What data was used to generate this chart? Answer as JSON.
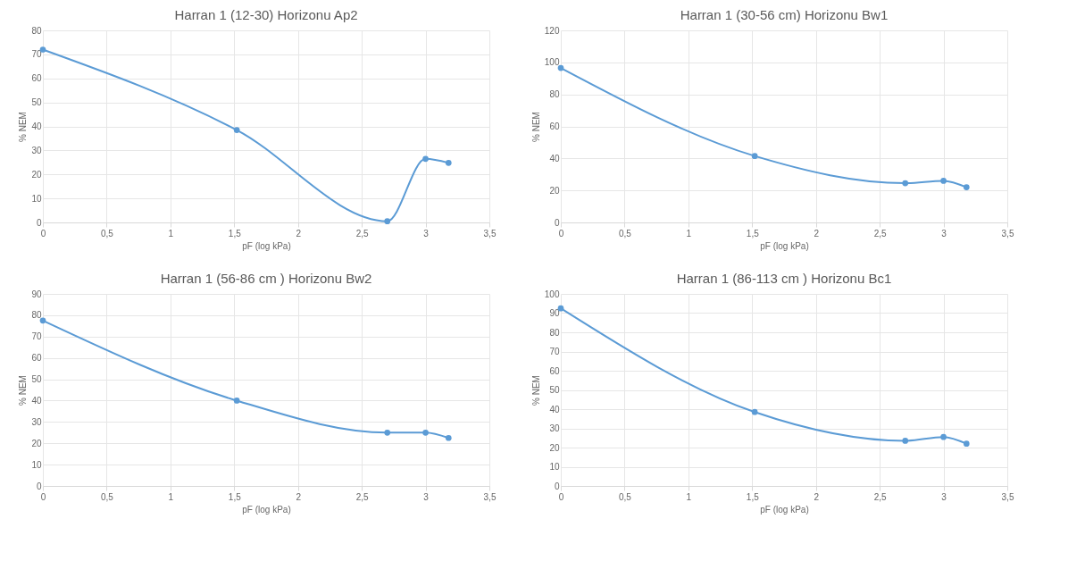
{
  "chart_data": [
    {
      "type": "line",
      "title": "Harran 1 (12-30) Horizonu  Ap2",
      "xlabel": "pF (log kPa)",
      "ylabel": "% NEM",
      "x": [
        0,
        1.52,
        2.7,
        3.0,
        3.18
      ],
      "series": [
        {
          "color": "#5b9bd5",
          "values": [
            72,
            38.5,
            0.5,
            26.5,
            24.8
          ]
        }
      ],
      "xlim": [
        0,
        3.5
      ],
      "xticks": [
        0,
        {
          "value": 0.5,
          "label": "0,5"
        },
        1,
        {
          "value": 1.5,
          "label": "1,5"
        },
        2,
        {
          "value": 2.5,
          "label": "2,5"
        },
        3,
        {
          "value": 3.5,
          "label": "3,5"
        }
      ],
      "ylim": [
        0,
        80
      ],
      "yticks": [
        0,
        10,
        20,
        30,
        40,
        50,
        60,
        70,
        80
      ],
      "grid": true,
      "marker": "circle"
    },
    {
      "type": "line",
      "title": "Harran 1 (30-56  cm) Horizonu  Bw1",
      "xlabel": "pF (log kPa)",
      "ylabel": "% NEM",
      "x": [
        0,
        1.52,
        2.7,
        3.0,
        3.18
      ],
      "series": [
        {
          "color": "#5b9bd5",
          "values": [
            96.5,
            41.5,
            24.5,
            26,
            22
          ]
        }
      ],
      "xlim": [
        0,
        3.5
      ],
      "xticks": [
        0,
        {
          "value": 0.5,
          "label": "0,5"
        },
        1,
        {
          "value": 1.5,
          "label": "1,5"
        },
        2,
        {
          "value": 2.5,
          "label": "2,5"
        },
        3,
        {
          "value": 3.5,
          "label": "3,5"
        }
      ],
      "ylim": [
        0,
        120
      ],
      "yticks": [
        0,
        20,
        40,
        60,
        80,
        100,
        120
      ],
      "grid": true,
      "marker": "circle"
    },
    {
      "type": "line",
      "title": "Harran 1 (56-86  cm ) Horizonu   Bw2",
      "xlabel": "pF (log kPa)",
      "ylabel": "% NEM",
      "x": [
        0,
        1.52,
        2.7,
        3.0,
        3.18
      ],
      "series": [
        {
          "color": "#5b9bd5",
          "values": [
            77.5,
            40,
            25,
            25,
            22.5
          ]
        }
      ],
      "xlim": [
        0,
        3.5
      ],
      "xticks": [
        0,
        {
          "value": 0.5,
          "label": "0,5"
        },
        1,
        {
          "value": 1.5,
          "label": "1,5"
        },
        2,
        {
          "value": 2.5,
          "label": "2,5"
        },
        3,
        {
          "value": 3.5,
          "label": "3,5"
        }
      ],
      "ylim": [
        0,
        90
      ],
      "yticks": [
        0,
        10,
        20,
        30,
        40,
        50,
        60,
        70,
        80,
        90
      ],
      "grid": true,
      "marker": "circle"
    },
    {
      "type": "line",
      "title": "Harran 1 (86-113  cm ) Horizonu  Bc1",
      "xlabel": "pF (log kPa)",
      "ylabel": "% NEM",
      "x": [
        0,
        1.52,
        2.7,
        3.0,
        3.18
      ],
      "series": [
        {
          "color": "#5b9bd5",
          "values": [
            92.5,
            38.5,
            23.5,
            25.5,
            22
          ]
        }
      ],
      "xlim": [
        0,
        3.5
      ],
      "xticks": [
        0,
        {
          "value": 0.5,
          "label": "0,5"
        },
        1,
        {
          "value": 1.5,
          "label": "1,5"
        },
        2,
        {
          "value": 2.5,
          "label": "2,5"
        },
        3,
        {
          "value": 3.5,
          "label": "3,5"
        }
      ],
      "ylim": [
        0,
        100
      ],
      "yticks": [
        0,
        10,
        20,
        30,
        40,
        50,
        60,
        70,
        80,
        90,
        100
      ],
      "grid": true,
      "marker": "circle"
    }
  ]
}
